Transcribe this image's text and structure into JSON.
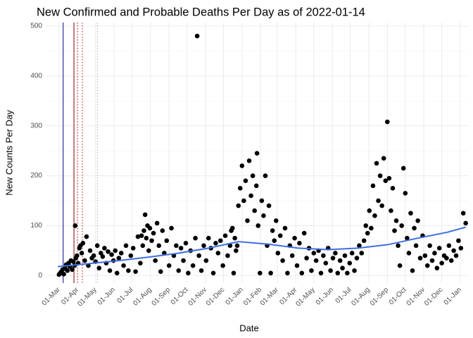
{
  "chart_data": {
    "type": "scatter",
    "title": "New Confirmed and Probable Deaths Per Day as of 2022-01-14",
    "x_label": "Date",
    "y_label": "New Counts Per Day",
    "x": [
      0,
      2,
      4,
      6,
      8,
      10,
      12,
      14,
      16,
      18,
      20,
      22,
      24,
      26,
      27,
      28,
      30,
      32,
      34,
      36,
      38,
      40,
      43,
      46,
      49,
      52,
      55,
      58,
      61,
      64,
      67,
      70,
      73,
      76,
      79,
      82,
      85,
      88,
      91,
      94,
      97,
      100,
      104,
      108,
      112,
      116,
      120,
      124,
      128,
      132,
      136,
      138,
      140,
      142,
      144,
      146,
      148,
      150,
      152,
      155,
      158,
      161,
      164,
      167,
      170,
      173,
      176,
      180,
      184,
      188,
      192,
      196,
      200,
      204,
      208,
      212,
      216,
      220,
      224,
      228,
      231,
      234,
      238,
      242,
      246,
      250,
      254,
      258,
      262,
      266,
      270,
      274,
      278,
      282,
      286,
      288,
      290,
      292,
      294,
      296,
      298,
      300,
      303,
      306,
      309,
      312,
      315,
      318,
      321,
      324,
      327,
      330,
      331,
      333,
      336,
      339,
      342,
      345,
      348,
      351,
      354,
      357,
      360,
      363,
      366,
      370,
      374,
      378,
      382,
      386,
      390,
      394,
      398,
      402,
      406,
      410,
      414,
      418,
      422,
      426,
      430,
      434,
      438,
      442,
      446,
      450,
      454,
      458,
      462,
      466,
      470,
      474,
      478,
      482,
      486,
      490,
      494,
      498,
      502,
      506,
      510,
      513,
      516,
      519,
      522,
      525,
      528,
      531,
      534,
      537,
      540,
      543,
      546,
      549,
      552,
      555,
      558,
      561,
      564,
      567,
      570,
      573,
      576,
      579,
      582,
      585,
      588,
      591,
      594,
      597,
      600,
      604,
      608,
      612,
      616,
      620,
      624,
      628,
      632,
      636,
      640,
      644,
      648,
      652,
      656,
      660,
      664,
      668,
      672,
      676,
      680
    ],
    "values": [
      2,
      5,
      8,
      12,
      3,
      15,
      22,
      10,
      25,
      18,
      30,
      12,
      28,
      20,
      100,
      35,
      40,
      25,
      55,
      60,
      45,
      65,
      30,
      78,
      20,
      50,
      35,
      40,
      28,
      60,
      15,
      45,
      38,
      55,
      25,
      48,
      10,
      42,
      30,
      50,
      5,
      35,
      45,
      20,
      60,
      10,
      40,
      55,
      8,
      78,
      25,
      80,
      60,
      90,
      122,
      75,
      100,
      50,
      95,
      70,
      85,
      30,
      105,
      60,
      8,
      90,
      45,
      70,
      20,
      95,
      40,
      60,
      10,
      55,
      30,
      65,
      5,
      50,
      20,
      75,
      480,
      40,
      10,
      60,
      30,
      75,
      55,
      5,
      65,
      45,
      70,
      20,
      80,
      40,
      60,
      90,
      95,
      5,
      75,
      50,
      60,
      140,
      175,
      220,
      150,
      190,
      110,
      230,
      160,
      200,
      130,
      180,
      245,
      100,
      5,
      150,
      120,
      200,
      60,
      140,
      5,
      90,
      70,
      110,
      45,
      80,
      30,
      95,
      5,
      60,
      40,
      75,
      20,
      65,
      5,
      85,
      35,
      55,
      10,
      45,
      30,
      50,
      5,
      40,
      25,
      55,
      10,
      35,
      45,
      5,
      30,
      15,
      40,
      5,
      25,
      45,
      10,
      35,
      60,
      45,
      70,
      100,
      85,
      130,
      95,
      180,
      120,
      225,
      150,
      200,
      140,
      235,
      190,
      308,
      195,
      130,
      175,
      90,
      110,
      60,
      20,
      100,
      215,
      165,
      75,
      45,
      125,
      10,
      95,
      60,
      110,
      35,
      80,
      40,
      20,
      60,
      30,
      45,
      15,
      55,
      25,
      40,
      35,
      60,
      30,
      50,
      40,
      70,
      55,
      125,
      105
    ],
    "color": "#000000",
    "smooth": {
      "color": "#3f6fe0",
      "x": [
        -2,
        50,
        100,
        150,
        200,
        250,
        300,
        350,
        400,
        450,
        500,
        550,
        600,
        650,
        680
      ],
      "values": [
        18,
        24,
        30,
        37,
        45,
        55,
        68,
        63,
        55,
        52,
        55,
        62,
        75,
        87,
        97
      ]
    },
    "vlines": [
      {
        "x": 7,
        "color": "#00008b",
        "style": "solid"
      },
      {
        "x": 25,
        "color": "#8b0000",
        "style": "solid"
      },
      {
        "x": 31,
        "color": "#cc0000",
        "style": "dotted"
      },
      {
        "x": 39,
        "color": "#cc0000",
        "style": "dotted"
      },
      {
        "x": 64,
        "color": "#aaaaaa",
        "style": "dotted"
      }
    ],
    "xlim": [
      -21,
      684
    ],
    "ylim": [
      -15,
      507
    ],
    "yticks": [
      0,
      100,
      200,
      300,
      400,
      500
    ],
    "xticks": [
      {
        "value": 0,
        "label": "01-Mar"
      },
      {
        "value": 31,
        "label": "01-Apr"
      },
      {
        "value": 61,
        "label": "01-May"
      },
      {
        "value": 92,
        "label": "01-Jun"
      },
      {
        "value": 122,
        "label": "01-Jul"
      },
      {
        "value": 153,
        "label": "01-Aug"
      },
      {
        "value": 184,
        "label": "01-Sep"
      },
      {
        "value": 214,
        "label": "01-Oct"
      },
      {
        "value": 245,
        "label": "01-Nov"
      },
      {
        "value": 275,
        "label": "01-Dec"
      },
      {
        "value": 306,
        "label": "01-Jan"
      },
      {
        "value": 337,
        "label": "01-Feb"
      },
      {
        "value": 365,
        "label": "01-Mar"
      },
      {
        "value": 396,
        "label": "01-Apr"
      },
      {
        "value": 426,
        "label": "01-May"
      },
      {
        "value": 457,
        "label": "01-Jun"
      },
      {
        "value": 487,
        "label": "01-Jul"
      },
      {
        "value": 518,
        "label": "01-Aug"
      },
      {
        "value": 549,
        "label": "01-Sep"
      },
      {
        "value": 579,
        "label": "01-Oct"
      },
      {
        "value": 610,
        "label": "01-Nov"
      },
      {
        "value": 640,
        "label": "01-Dec"
      },
      {
        "value": 671,
        "label": "01-Jan"
      }
    ],
    "grid": true
  }
}
